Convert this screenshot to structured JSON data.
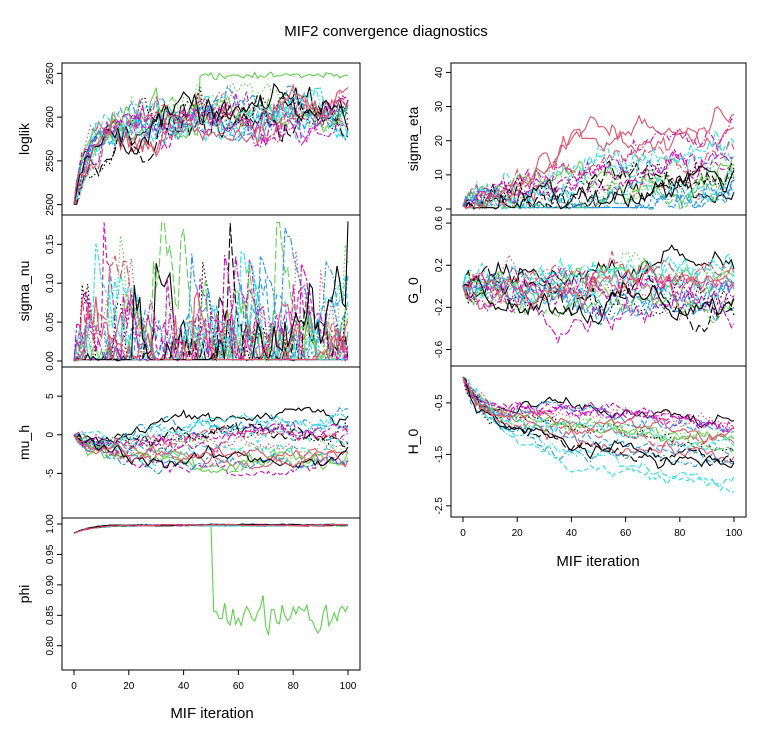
{
  "chart_data": {
    "type": "line",
    "title": "MIF2 convergence diagnostics",
    "x": {
      "label": "MIF iteration",
      "range": [
        0,
        100
      ],
      "ticks": [
        0,
        20,
        40,
        60,
        80,
        100
      ]
    },
    "colors": [
      "#000000",
      "#DF536B",
      "#61D04F",
      "#2297E6",
      "#28E2E5",
      "#CD0BBC"
    ],
    "line_styles": [
      "solid",
      "dashed",
      "dotted",
      "dotdash",
      "longdash",
      "twodash"
    ],
    "n_replicates": 20,
    "panels": [
      {
        "variable": "loglik",
        "column": "left",
        "ylim": [
          2495,
          2655
        ],
        "yticks": [
          2500,
          2550,
          2600,
          2650
        ],
        "start": 2500,
        "trend": [
          2590,
          2605
        ],
        "spread": 8,
        "noise": 12,
        "outlier_series": {
          "index": 2,
          "after": 45,
          "value": 2648
        }
      },
      {
        "variable": "sigma_nu",
        "column": "left",
        "ylim": [
          0,
          0.18
        ],
        "yticks": [
          0.0,
          0.05,
          0.1,
          0.15
        ],
        "start": 0.0,
        "trend": [
          0.005,
          0.005
        ],
        "spread": 0.01,
        "noise": 0.03,
        "spiky": true
      },
      {
        "variable": "mu_h",
        "column": "left",
        "ylim": [
          -10,
          8
        ],
        "yticks": [
          -5,
          0,
          5
        ],
        "start": 0.0,
        "trend": [
          -2,
          -1
        ],
        "spread": 3,
        "noise": 0.6
      },
      {
        "variable": "phi",
        "column": "left",
        "ylim": [
          0.77,
          1.0
        ],
        "yticks": [
          0.8,
          0.85,
          0.9,
          0.95,
          1.0
        ],
        "start": 0.985,
        "trend": [
          0.998,
          0.998
        ],
        "spread": 0.001,
        "noise": 0.0005,
        "outlier_series": {
          "index": 2,
          "after": 50,
          "value": 0.85
        }
      },
      {
        "variable": "sigma_eta",
        "column": "right",
        "ylim": [
          0,
          41
        ],
        "yticks": [
          0,
          10,
          20,
          30,
          40
        ],
        "start": 1.0,
        "trend": [
          3,
          15
        ],
        "spread": 8,
        "noise": 2.5
      },
      {
        "variable": "G_0",
        "column": "right",
        "ylim": [
          -0.7,
          0.62
        ],
        "yticks": [
          -0.6,
          -0.2,
          0.2,
          0.6
        ],
        "start": 0.0,
        "trend": [
          0.0,
          -0.05
        ],
        "spread": 0.15,
        "noise": 0.08
      },
      {
        "variable": "H_0",
        "column": "right",
        "ylim": [
          -2.6,
          0.1
        ],
        "yticks": [
          -2.5,
          -1.5,
          -0.5
        ],
        "start": 0.0,
        "trend": [
          -0.8,
          -1.4
        ],
        "spread": 0.5,
        "noise": 0.08
      }
    ]
  }
}
